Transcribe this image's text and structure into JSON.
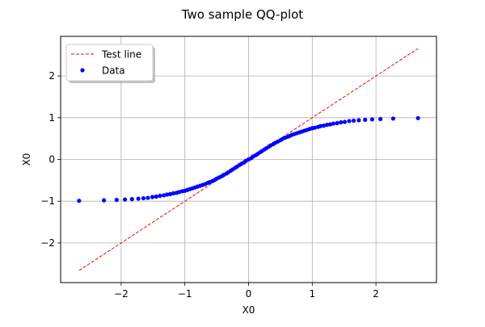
{
  "chart_data": {
    "type": "scatter",
    "title": "Two sample QQ-plot",
    "xlabel": "X0",
    "ylabel": "X0",
    "xlim": [
      -2.95,
      2.95
    ],
    "ylim": [
      -2.95,
      2.95
    ],
    "xticks": [
      {
        "value": -2,
        "label": "−2"
      },
      {
        "value": -1,
        "label": "−1"
      },
      {
        "value": 0,
        "label": "0"
      },
      {
        "value": 1,
        "label": "1"
      },
      {
        "value": 2,
        "label": "2"
      }
    ],
    "yticks": [
      {
        "value": -2,
        "label": "−2"
      },
      {
        "value": -1,
        "label": "−1"
      },
      {
        "value": 0,
        "label": "0"
      },
      {
        "value": 1,
        "label": "1"
      },
      {
        "value": 2,
        "label": "2"
      }
    ],
    "grid": true,
    "legend": {
      "position": "top-left"
    },
    "series": [
      {
        "name": "Test line",
        "kind": "dashed-line",
        "color": "#ff0000",
        "x": [
          -2.66,
          2.66
        ],
        "y": [
          -2.66,
          2.66
        ]
      },
      {
        "name": "Data",
        "kind": "scatter",
        "color": "#0000ff",
        "x": [
          -2.66,
          -2.27,
          -2.07,
          -1.94,
          -1.83,
          -1.73,
          -1.65,
          -1.58,
          -1.51,
          -1.45,
          -1.39,
          -1.33,
          -1.28,
          -1.23,
          -1.18,
          -1.13,
          -1.09,
          -1.04,
          -1.0,
          -0.96,
          -0.92,
          -0.88,
          -0.84,
          -0.8,
          -0.76,
          -0.72,
          -0.68,
          -0.64,
          -0.61,
          -0.57,
          -0.53,
          -0.5,
          -0.46,
          -0.42,
          -0.39,
          -0.35,
          -0.32,
          -0.28,
          -0.25,
          -0.21,
          -0.18,
          -0.14,
          -0.11,
          -0.07,
          -0.04,
          0.0,
          0.04,
          0.07,
          0.11,
          0.14,
          0.18,
          0.21,
          0.25,
          0.28,
          0.32,
          0.35,
          0.39,
          0.42,
          0.46,
          0.5,
          0.53,
          0.57,
          0.61,
          0.64,
          0.68,
          0.72,
          0.76,
          0.8,
          0.84,
          0.88,
          0.92,
          0.96,
          1.0,
          1.04,
          1.09,
          1.13,
          1.18,
          1.23,
          1.28,
          1.33,
          1.39,
          1.45,
          1.51,
          1.58,
          1.65,
          1.73,
          1.83,
          1.94,
          2.07,
          2.27,
          2.66
        ],
        "y": [
          -0.99,
          -0.98,
          -0.97,
          -0.96,
          -0.95,
          -0.94,
          -0.93,
          -0.92,
          -0.9,
          -0.89,
          -0.87,
          -0.86,
          -0.84,
          -0.83,
          -0.81,
          -0.8,
          -0.78,
          -0.76,
          -0.75,
          -0.73,
          -0.71,
          -0.69,
          -0.67,
          -0.65,
          -0.63,
          -0.61,
          -0.59,
          -0.56,
          -0.54,
          -0.52,
          -0.49,
          -0.46,
          -0.43,
          -0.4,
          -0.37,
          -0.34,
          -0.31,
          -0.27,
          -0.24,
          -0.2,
          -0.17,
          -0.13,
          -0.1,
          -0.07,
          -0.03,
          0.0,
          0.03,
          0.07,
          0.1,
          0.13,
          0.17,
          0.2,
          0.24,
          0.27,
          0.31,
          0.34,
          0.37,
          0.4,
          0.43,
          0.46,
          0.49,
          0.52,
          0.54,
          0.56,
          0.59,
          0.61,
          0.63,
          0.65,
          0.67,
          0.69,
          0.71,
          0.73,
          0.75,
          0.76,
          0.78,
          0.8,
          0.81,
          0.83,
          0.84,
          0.86,
          0.87,
          0.89,
          0.9,
          0.92,
          0.93,
          0.94,
          0.95,
          0.96,
          0.97,
          0.98,
          0.99
        ]
      }
    ]
  }
}
